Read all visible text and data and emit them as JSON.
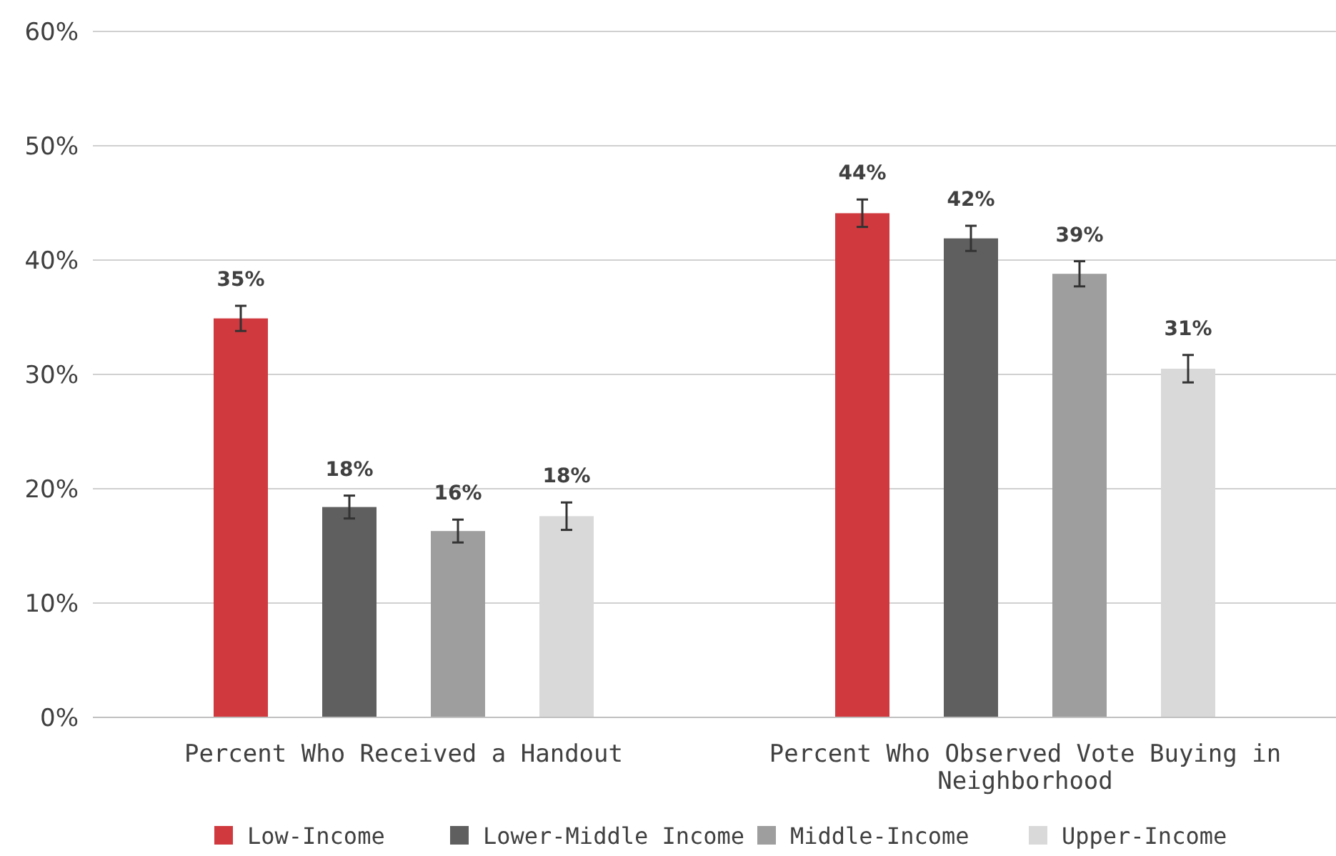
{
  "chart_data": {
    "type": "bar",
    "categories": [
      "Percent Who Received a Handout",
      "Percent Who Observed Vote Buying in Neighborhood"
    ],
    "series": [
      {
        "name": "Low-Income",
        "color": "#d0393e",
        "values": [
          34.9,
          44.1
        ],
        "errors": [
          1.1,
          1.2
        ],
        "value_labels": [
          "35%",
          "44%"
        ]
      },
      {
        "name": "Lower-Middle Income",
        "color": "#5f5f5f",
        "values": [
          18.4,
          41.9
        ],
        "errors": [
          1,
          1.1
        ],
        "value_labels": [
          "18%",
          "42%"
        ]
      },
      {
        "name": "Middle-Income",
        "color": "#9e9e9e",
        "values": [
          16.3,
          38.8
        ],
        "errors": [
          1,
          1.1
        ],
        "value_labels": [
          "16%",
          "39%"
        ]
      },
      {
        "name": "Upper-Income",
        "color": "#d9d9d9",
        "values": [
          17.6,
          30.5
        ],
        "errors": [
          1.2,
          1.2
        ],
        "value_labels": [
          "18%",
          "31%"
        ]
      }
    ],
    "ylim": [
      0,
      60
    ],
    "yticks": [
      {
        "value": 0,
        "label": "0%"
      },
      {
        "value": 10,
        "label": "10%"
      },
      {
        "value": 20,
        "label": "20%"
      },
      {
        "value": 30,
        "label": "30%"
      },
      {
        "value": 40,
        "label": "40%"
      },
      {
        "value": 50,
        "label": "50%"
      },
      {
        "value": 60,
        "label": "60%"
      }
    ],
    "grid": "y",
    "legend": "bottom"
  }
}
